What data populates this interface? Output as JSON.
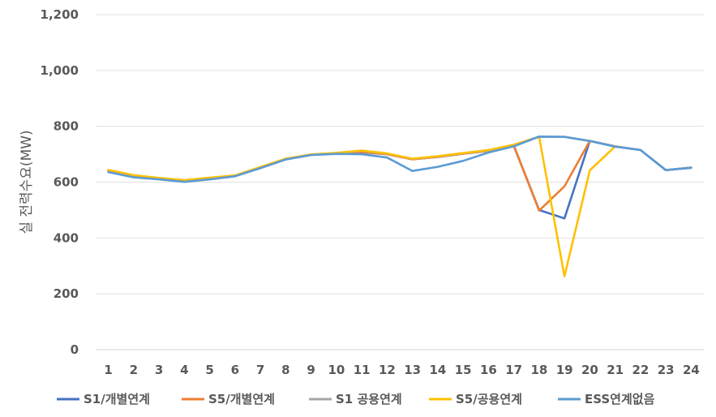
{
  "chart_data": {
    "type": "line",
    "title": "",
    "xlabel": "",
    "ylabel": "실 전력수요(MW)",
    "ylim": [
      0,
      1200
    ],
    "yticks": [
      0,
      200,
      400,
      600,
      800,
      1000,
      1200
    ],
    "ytick_labels": [
      "0",
      "200",
      "400",
      "600",
      "800",
      "1,000",
      "1,200"
    ],
    "categories": [
      "1",
      "2",
      "3",
      "4",
      "5",
      "6",
      "7",
      "8",
      "9",
      "10",
      "11",
      "12",
      "13",
      "14",
      "15",
      "16",
      "17",
      "18",
      "19",
      "20",
      "21",
      "22",
      "23",
      "24"
    ],
    "grid": "horizontal",
    "legend_position": "bottom",
    "series": [
      {
        "name": "S1/개별연계",
        "color": "#4472C4",
        "values": [
          640,
          622,
          612,
          604,
          613,
          622,
          652,
          683,
          698,
          703,
          707,
          700,
          682,
          690,
          702,
          712,
          730,
          500,
          470,
          748,
          728,
          715,
          643,
          652
        ]
      },
      {
        "name": "S5/개별연계",
        "color": "#ED7D31",
        "values": [
          640,
          622,
          612,
          604,
          613,
          622,
          652,
          683,
          698,
          703,
          708,
          700,
          682,
          690,
          702,
          712,
          732,
          498,
          585,
          748,
          728,
          715,
          643,
          652
        ]
      },
      {
        "name": "S1 공용연계",
        "color": "#A5A5A5",
        "values": [
          643,
          624,
          614,
          606,
          615,
          623,
          653,
          684,
          699,
          704,
          712,
          702,
          683,
          692,
          703,
          714,
          733,
          763,
          762,
          748,
          728,
          715,
          643,
          652
        ]
      },
      {
        "name": "S5/공용연계",
        "color": "#FFC000",
        "values": [
          644,
          625,
          615,
          607,
          616,
          624,
          654,
          684,
          699,
          705,
          713,
          703,
          684,
          693,
          704,
          715,
          734,
          762,
          263,
          642,
          728,
          null,
          null,
          null
        ]
      },
      {
        "name": "ESS연계없음",
        "color": "#5B9BD5",
        "values": [
          636,
          617,
          610,
          601,
          610,
          621,
          650,
          681,
          697,
          701,
          700,
          688,
          640,
          655,
          676,
          706,
          728,
          763,
          762,
          747,
          727,
          715,
          643,
          651
        ]
      }
    ]
  }
}
